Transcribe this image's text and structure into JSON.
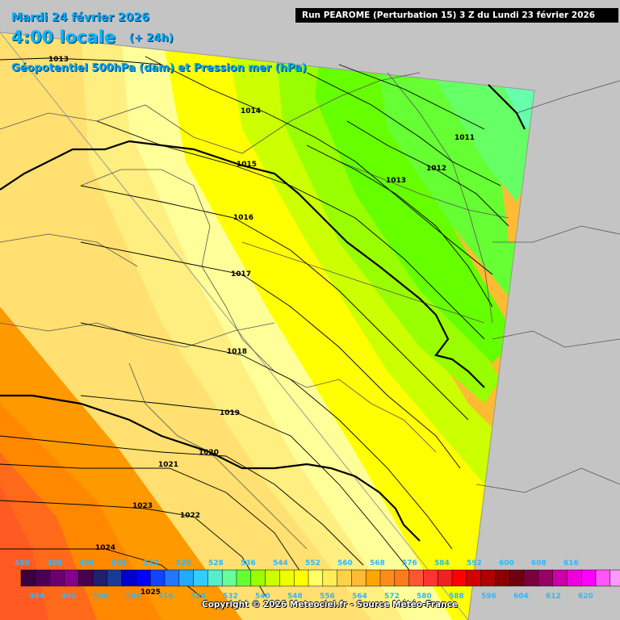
{
  "header": {
    "date": "Mardi 24 février 2026",
    "time": "4:00 locale",
    "offset": "(+ 24h)",
    "parameter": "Géopotentiel 500hPa (dam) et Pression mer (hPa)"
  },
  "run_banner": "Run PEAROME (Perturbation 15) 3 Z du Lundi 23 février 2026",
  "copyright": "Copyright © 2026 Meteociel.fr - Source Météo-France",
  "isobars": [
    "1013",
    "1014",
    "1015",
    "1016",
    "1017",
    "1018",
    "1019",
    "1020",
    "1021",
    "1023",
    "1022",
    "1024",
    "1025",
    "1011",
    "1012",
    "1013"
  ],
  "legend": {
    "top_labels": [
      "480",
      "488",
      "496",
      "504",
      "512",
      "520",
      "528",
      "536",
      "544",
      "552",
      "560",
      "568",
      "576",
      "584",
      "592",
      "600",
      "608",
      "616"
    ],
    "bottom_labels": [
      "484",
      "492",
      "500",
      "508",
      "516",
      "524",
      "532",
      "540",
      "548",
      "556",
      "564",
      "572",
      "580",
      "588",
      "596",
      "604",
      "612",
      "620"
    ],
    "colors": [
      "#3a0040",
      "#4b0055",
      "#6a0070",
      "#860090",
      "#4a0050",
      "#202070",
      "#1a3a9a",
      "#0000cc",
      "#0000ff",
      "#1144ff",
      "#2277ff",
      "#22aaff",
      "#33ccff",
      "#55eecc",
      "#66ff99",
      "#66ff33",
      "#99ff00",
      "#ccff00",
      "#eeff00",
      "#ffff00",
      "#ffff66",
      "#ffee55",
      "#ffd24a",
      "#ffbb33",
      "#ffa500",
      "#ff8c1a",
      "#ff7a1a",
      "#ff5533",
      "#ff3333",
      "#ee2222",
      "#ff0000",
      "#d40000",
      "#b00000",
      "#8a0000",
      "#700010",
      "#7a0040",
      "#990066",
      "#cc00aa",
      "#ee00dd",
      "#ff00ff",
      "#ff55ff",
      "#ff99ff"
    ]
  }
}
